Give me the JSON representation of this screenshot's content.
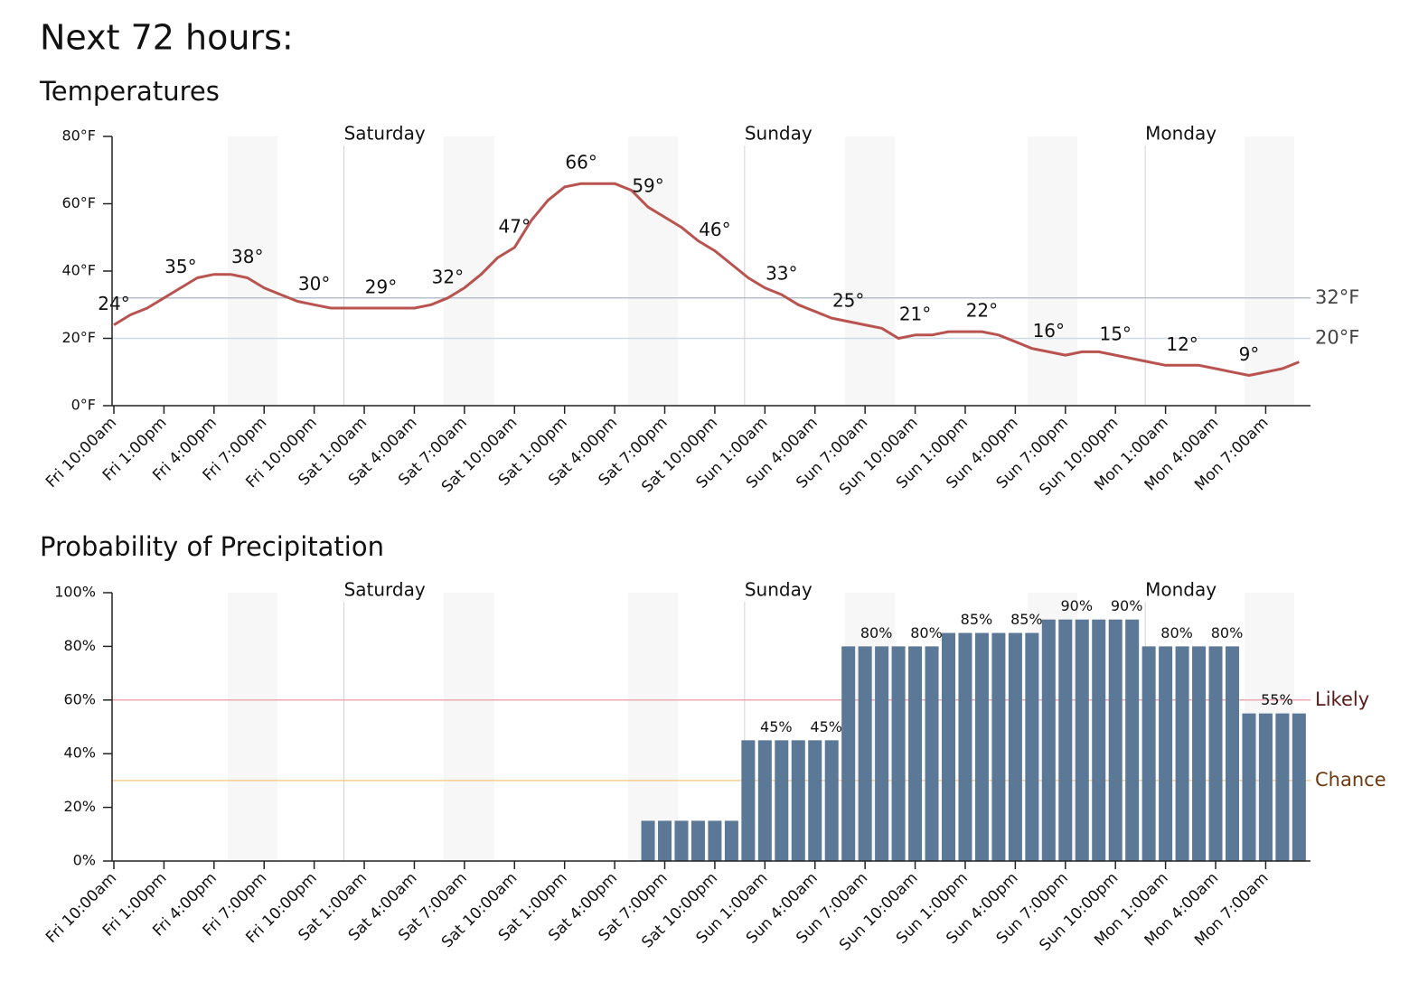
{
  "heading": "Next 72 hours:",
  "chart_data": [
    {
      "type": "line",
      "title": "Temperatures",
      "color": "#b9534f",
      "day_labels": [
        "Saturday",
        "Sunday",
        "Monday"
      ],
      "categories": [
        "Fri 10:00am",
        null,
        null,
        "Fri 1:00pm",
        null,
        null,
        "Fri 4:00pm",
        null,
        null,
        "Fri 7:00pm",
        null,
        null,
        "Fri 10:00pm",
        null,
        null,
        "Sat 1:00am",
        null,
        null,
        "Sat 4:00am",
        null,
        null,
        "Sat 7:00am",
        null,
        null,
        "Sat 10:00am",
        null,
        null,
        "Sat 1:00pm",
        null,
        null,
        "Sat 4:00pm",
        null,
        null,
        "Sat 7:00pm",
        null,
        null,
        "Sat 10:00pm",
        null,
        null,
        "Sun 1:00am",
        null,
        null,
        "Sun 4:00am",
        null,
        null,
        "Sun 7:00am",
        null,
        null,
        "Sun 10:00am",
        null,
        null,
        "Sun 1:00pm",
        null,
        null,
        "Sun 4:00pm",
        null,
        null,
        "Sun 7:00pm",
        null,
        null,
        "Sun 10:00pm",
        null,
        null,
        "Mon 1:00am",
        null,
        null,
        "Mon 4:00am",
        null,
        null,
        "Mon 7:00am",
        null,
        null
      ],
      "values": [
        24,
        27,
        29,
        32,
        35,
        38,
        39,
        39,
        38,
        35,
        33,
        31,
        30,
        29,
        29,
        29,
        29,
        29,
        29,
        30,
        32,
        35,
        39,
        44,
        47,
        55,
        61,
        65,
        66,
        66,
        66,
        64,
        59,
        56,
        53,
        49,
        46,
        42,
        38,
        35,
        33,
        30,
        28,
        26,
        25,
        24,
        23,
        20,
        21,
        21,
        22,
        22,
        22,
        21,
        19,
        17,
        16,
        15,
        16,
        16,
        15,
        14,
        13,
        12,
        12,
        12,
        11,
        10,
        9,
        10,
        11,
        13
      ],
      "value_labels": [
        "24°",
        null,
        null,
        null,
        "35°",
        null,
        null,
        null,
        "38°",
        null,
        null,
        null,
        "30°",
        null,
        null,
        null,
        "29°",
        null,
        null,
        null,
        "32°",
        null,
        null,
        null,
        "47°",
        null,
        null,
        null,
        "66°",
        null,
        null,
        null,
        "59°",
        null,
        null,
        null,
        "46°",
        null,
        null,
        null,
        "33°",
        null,
        null,
        null,
        "25°",
        null,
        null,
        null,
        "21°",
        null,
        null,
        null,
        "22°",
        null,
        null,
        null,
        "16°",
        null,
        null,
        null,
        "15°",
        null,
        null,
        null,
        "12°",
        null,
        null,
        null,
        "9°",
        null,
        null,
        null
      ],
      "ylim": [
        0,
        80
      ],
      "yticks": [
        {
          "value": 0,
          "label": "0°F"
        },
        {
          "value": 20,
          "label": "20°F"
        },
        {
          "value": 40,
          "label": "40°F"
        },
        {
          "value": 60,
          "label": "60°F"
        },
        {
          "value": 80,
          "label": "80°F"
        }
      ],
      "reference_lines": [
        {
          "value": 32,
          "label": "32°F",
          "color": "#b4c0cc",
          "text_color": "#444444"
        },
        {
          "value": 20,
          "label": "20°F",
          "color": "#cfdbe4",
          "text_color": "#444444"
        }
      ]
    },
    {
      "type": "bar",
      "title": "Probability of Precipitation",
      "color": "#5b7897",
      "day_labels": [
        "Saturday",
        "Sunday",
        "Monday"
      ],
      "categories": [
        "Fri 10:00am",
        null,
        null,
        "Fri 1:00pm",
        null,
        null,
        "Fri 4:00pm",
        null,
        null,
        "Fri 7:00pm",
        null,
        null,
        "Fri 10:00pm",
        null,
        null,
        "Sat 1:00am",
        null,
        null,
        "Sat 4:00am",
        null,
        null,
        "Sat 7:00am",
        null,
        null,
        "Sat 10:00am",
        null,
        null,
        "Sat 1:00pm",
        null,
        null,
        "Sat 4:00pm",
        null,
        null,
        "Sat 7:00pm",
        null,
        null,
        "Sat 10:00pm",
        null,
        null,
        "Sun 1:00am",
        null,
        null,
        "Sun 4:00am",
        null,
        null,
        "Sun 7:00am",
        null,
        null,
        "Sun 10:00am",
        null,
        null,
        "Sun 1:00pm",
        null,
        null,
        "Sun 4:00pm",
        null,
        null,
        "Sun 7:00pm",
        null,
        null,
        "Sun 10:00pm",
        null,
        null,
        "Mon 1:00am",
        null,
        null,
        "Mon 4:00am",
        null,
        null,
        "Mon 7:00am",
        null,
        null
      ],
      "values": [
        0,
        0,
        0,
        0,
        0,
        0,
        0,
        0,
        0,
        0,
        0,
        0,
        0,
        0,
        0,
        0,
        0,
        0,
        0,
        0,
        0,
        0,
        0,
        0,
        0,
        0,
        0,
        0,
        0,
        0,
        0,
        0,
        15,
        15,
        15,
        15,
        15,
        15,
        45,
        45,
        45,
        45,
        45,
        45,
        80,
        80,
        80,
        80,
        80,
        80,
        85,
        85,
        85,
        85,
        85,
        85,
        90,
        90,
        90,
        90,
        90,
        90,
        80,
        80,
        80,
        80,
        80,
        80,
        55,
        55,
        55,
        55
      ],
      "value_labels": [
        null,
        null,
        null,
        null,
        null,
        null,
        null,
        null,
        null,
        null,
        null,
        null,
        null,
        null,
        null,
        null,
        null,
        null,
        null,
        null,
        null,
        null,
        null,
        null,
        null,
        null,
        null,
        null,
        null,
        null,
        null,
        null,
        null,
        null,
        null,
        null,
        null,
        null,
        null,
        null,
        "45%",
        null,
        null,
        "45%",
        null,
        null,
        "80%",
        null,
        null,
        "80%",
        null,
        null,
        "85%",
        null,
        null,
        "85%",
        null,
        null,
        "90%",
        null,
        null,
        "90%",
        null,
        null,
        "80%",
        null,
        null,
        "80%",
        null,
        null,
        "55%",
        null
      ],
      "ylim": [
        0,
        100
      ],
      "yticks": [
        {
          "value": 0,
          "label": "0%"
        },
        {
          "value": 20,
          "label": "20%"
        },
        {
          "value": 40,
          "label": "40%"
        },
        {
          "value": 60,
          "label": "60%"
        },
        {
          "value": 80,
          "label": "80%"
        },
        {
          "value": 100,
          "label": "100%"
        }
      ],
      "reference_lines": [
        {
          "value": 60,
          "label": "Likely",
          "color": "#eeaab2",
          "text_color": "#5a1a1a"
        },
        {
          "value": 30,
          "label": "Chance",
          "color": "#f2cf98",
          "text_color": "#6b3a10"
        }
      ]
    }
  ]
}
